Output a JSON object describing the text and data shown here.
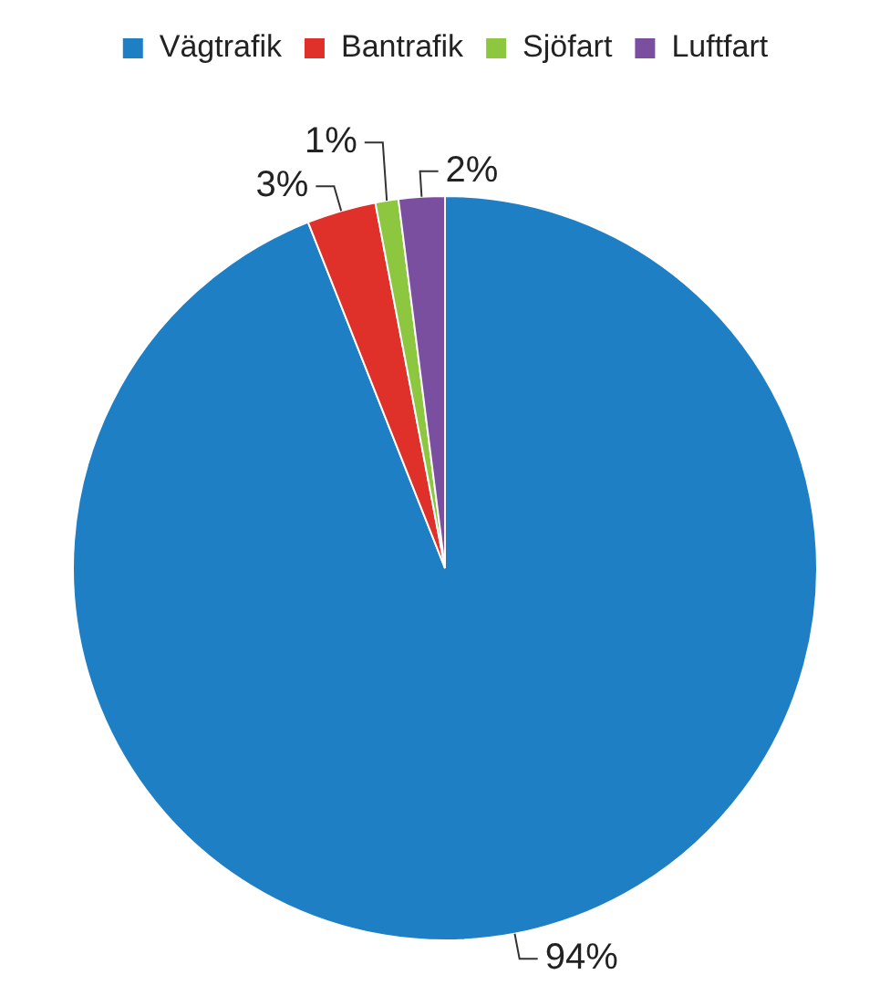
{
  "chart_data": {
    "type": "pie",
    "categories": [
      "Vägtrafik",
      "Bantrafik",
      "Sjöfart",
      "Luftfart"
    ],
    "values": [
      94,
      3,
      1,
      2
    ],
    "colors": [
      "#1f7fc4",
      "#e0302a",
      "#8dc63f",
      "#7b4fa0"
    ],
    "value_labels": [
      "94%",
      "3%",
      "1%",
      "2%"
    ],
    "legend": "top"
  }
}
